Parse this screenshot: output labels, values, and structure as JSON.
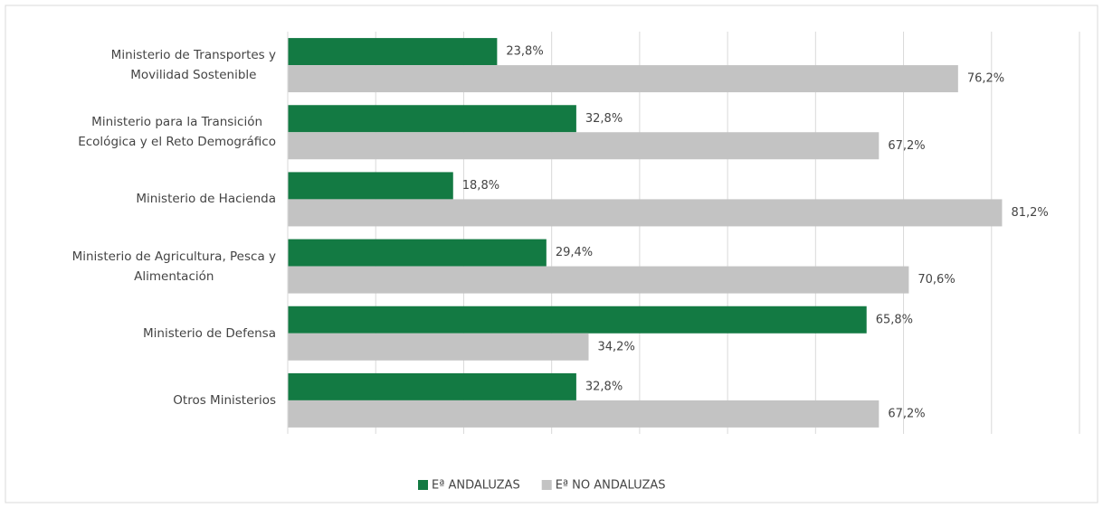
{
  "chart_data": {
    "type": "bar",
    "orientation": "horizontal",
    "categories": [
      "Ministerio de Transportes y\nMovilidad Sostenible",
      "Ministerio para la Transición\nEcológica y el Reto Demográfico",
      "Ministerio de Hacienda",
      "Ministerio de Agricultura, Pesca y\nAlimentación",
      "Ministerio de Defensa",
      "Otros Ministerios"
    ],
    "series": [
      {
        "name": "Eª ANDALUZAS",
        "color": "#137a43",
        "values": [
          23.8,
          32.8,
          18.8,
          29.4,
          65.8,
          32.8
        ],
        "value_labels": [
          "23,8%",
          "32,8%",
          "18,8%",
          "29,4%",
          "65,8%",
          "32,8%"
        ]
      },
      {
        "name": "Eª NO ANDALUZAS",
        "color": "#c3c3c3",
        "values": [
          76.2,
          67.2,
          81.2,
          70.6,
          34.2,
          67.2
        ],
        "value_labels": [
          "76,2%",
          "67,2%",
          "81,2%",
          "70,6%",
          "34,2%",
          "67,2%"
        ]
      }
    ],
    "xlim": [
      0,
      90
    ],
    "xticks": [
      0,
      10,
      20,
      30,
      40,
      50,
      60,
      70,
      80,
      90
    ],
    "grid": true,
    "legend": "bottom"
  }
}
